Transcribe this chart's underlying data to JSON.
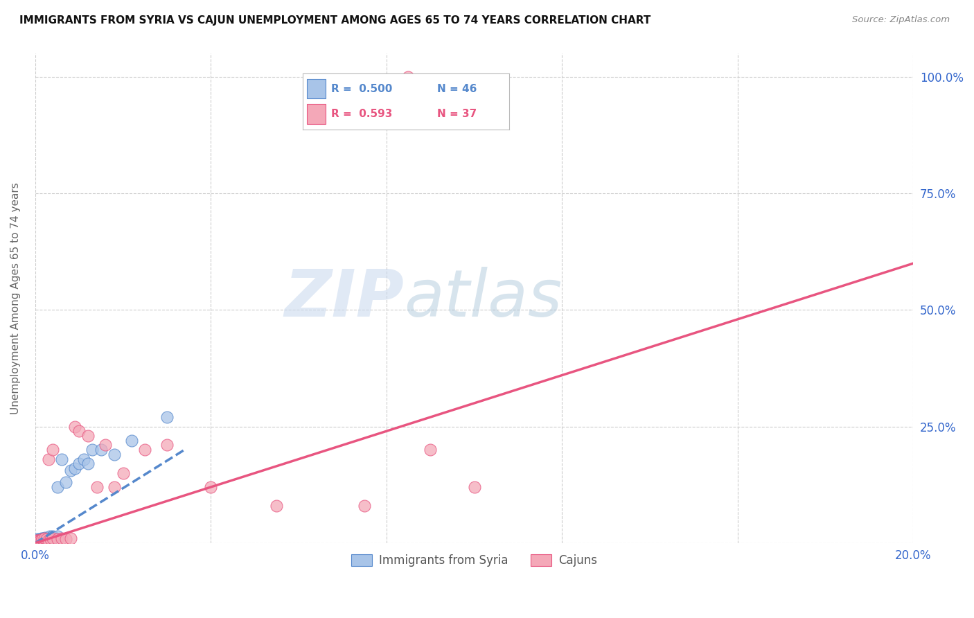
{
  "title": "IMMIGRANTS FROM SYRIA VS CAJUN UNEMPLOYMENT AMONG AGES 65 TO 74 YEARS CORRELATION CHART",
  "source": "Source: ZipAtlas.com",
  "ylabel": "Unemployment Among Ages 65 to 74 years",
  "xmin": 0.0,
  "xmax": 0.2,
  "ymin": 0.0,
  "ymax": 1.05,
  "xticks": [
    0.0,
    0.04,
    0.08,
    0.12,
    0.16,
    0.2
  ],
  "xticklabels": [
    "0.0%",
    "",
    "",
    "",
    "",
    "20.0%"
  ],
  "right_yticks": [
    0.0,
    0.25,
    0.5,
    0.75,
    1.0
  ],
  "right_yticklabels": [
    "",
    "25.0%",
    "50.0%",
    "75.0%",
    "100.0%"
  ],
  "legend_blue_r": "0.500",
  "legend_blue_n": "46",
  "legend_pink_r": "0.593",
  "legend_pink_n": "37",
  "legend_label_blue": "Immigrants from Syria",
  "legend_label_pink": "Cajuns",
  "blue_color": "#a8c4e8",
  "pink_color": "#f4a8b8",
  "trend_blue_color": "#5588cc",
  "trend_pink_color": "#e85580",
  "watermark_zip": "ZIP",
  "watermark_atlas": "atlas",
  "blue_scatter_x": [
    0.0002,
    0.0003,
    0.0004,
    0.0005,
    0.0006,
    0.0007,
    0.0008,
    0.0009,
    0.001,
    0.001,
    0.0012,
    0.0013,
    0.0014,
    0.0015,
    0.0016,
    0.0017,
    0.0018,
    0.002,
    0.002,
    0.0022,
    0.0023,
    0.0025,
    0.0026,
    0.0027,
    0.003,
    0.003,
    0.0032,
    0.0033,
    0.0035,
    0.004,
    0.004,
    0.0042,
    0.005,
    0.005,
    0.006,
    0.007,
    0.008,
    0.009,
    0.01,
    0.011,
    0.012,
    0.013,
    0.015,
    0.018,
    0.022,
    0.03
  ],
  "blue_scatter_y": [
    0.005,
    0.008,
    0.003,
    0.006,
    0.004,
    0.007,
    0.005,
    0.006,
    0.004,
    0.008,
    0.006,
    0.005,
    0.01,
    0.008,
    0.006,
    0.01,
    0.007,
    0.005,
    0.01,
    0.008,
    0.012,
    0.007,
    0.01,
    0.008,
    0.01,
    0.012,
    0.01,
    0.015,
    0.012,
    0.013,
    0.015,
    0.012,
    0.015,
    0.12,
    0.18,
    0.13,
    0.155,
    0.16,
    0.17,
    0.18,
    0.17,
    0.2,
    0.2,
    0.19,
    0.22,
    0.27
  ],
  "pink_scatter_x": [
    0.0002,
    0.0003,
    0.0004,
    0.0005,
    0.0006,
    0.0008,
    0.001,
    0.0012,
    0.0014,
    0.0016,
    0.002,
    0.002,
    0.0025,
    0.003,
    0.003,
    0.0035,
    0.004,
    0.004,
    0.005,
    0.006,
    0.007,
    0.008,
    0.009,
    0.01,
    0.012,
    0.014,
    0.016,
    0.018,
    0.02,
    0.025,
    0.03,
    0.04,
    0.055,
    0.075,
    0.09,
    0.1,
    0.085
  ],
  "pink_scatter_y": [
    0.003,
    0.005,
    0.004,
    0.006,
    0.003,
    0.005,
    0.004,
    0.006,
    0.005,
    0.008,
    0.006,
    0.01,
    0.008,
    0.006,
    0.18,
    0.008,
    0.01,
    0.2,
    0.008,
    0.01,
    0.008,
    0.01,
    0.25,
    0.24,
    0.23,
    0.12,
    0.21,
    0.12,
    0.15,
    0.2,
    0.21,
    0.12,
    0.08,
    0.08,
    0.2,
    0.12,
    1.0
  ],
  "blue_trend_x0": 0.0,
  "blue_trend_y0": 0.0,
  "blue_trend_x1": 0.034,
  "blue_trend_y1": 0.2,
  "pink_trend_x0": 0.0,
  "pink_trend_y0": 0.0,
  "pink_trend_x1": 0.2,
  "pink_trend_y1": 0.6
}
